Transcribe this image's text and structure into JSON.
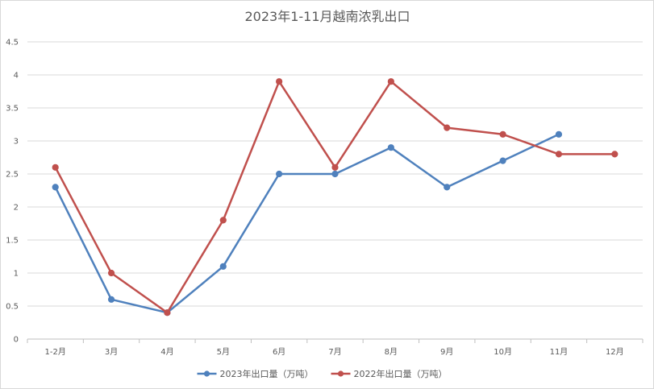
{
  "chart_data": {
    "type": "line",
    "title": "2023年1-11月越南浓乳出口",
    "xlabel": "",
    "ylabel": "",
    "categories": [
      "1-2月",
      "3月",
      "4月",
      "5月",
      "6月",
      "7月",
      "8月",
      "9月",
      "10月",
      "11月",
      "12月"
    ],
    "ylim": [
      0,
      4.5
    ],
    "yticks": [
      "0",
      "0.5",
      "1",
      "1.5",
      "2",
      "2.5",
      "3",
      "3.5",
      "4",
      "4.5"
    ],
    "grid": true,
    "legend_position": "bottom",
    "series": [
      {
        "name": "2023年出口量（万吨）",
        "color": "#4f81bd",
        "values": [
          2.3,
          0.6,
          0.4,
          1.1,
          2.5,
          2.5,
          2.9,
          2.3,
          2.7,
          3.1,
          null
        ]
      },
      {
        "name": "2022年出口量（万吨）",
        "color": "#c0504d",
        "values": [
          2.6,
          1.0,
          0.4,
          1.8,
          3.9,
          2.6,
          3.9,
          3.2,
          3.1,
          2.8,
          2.8
        ]
      }
    ]
  }
}
